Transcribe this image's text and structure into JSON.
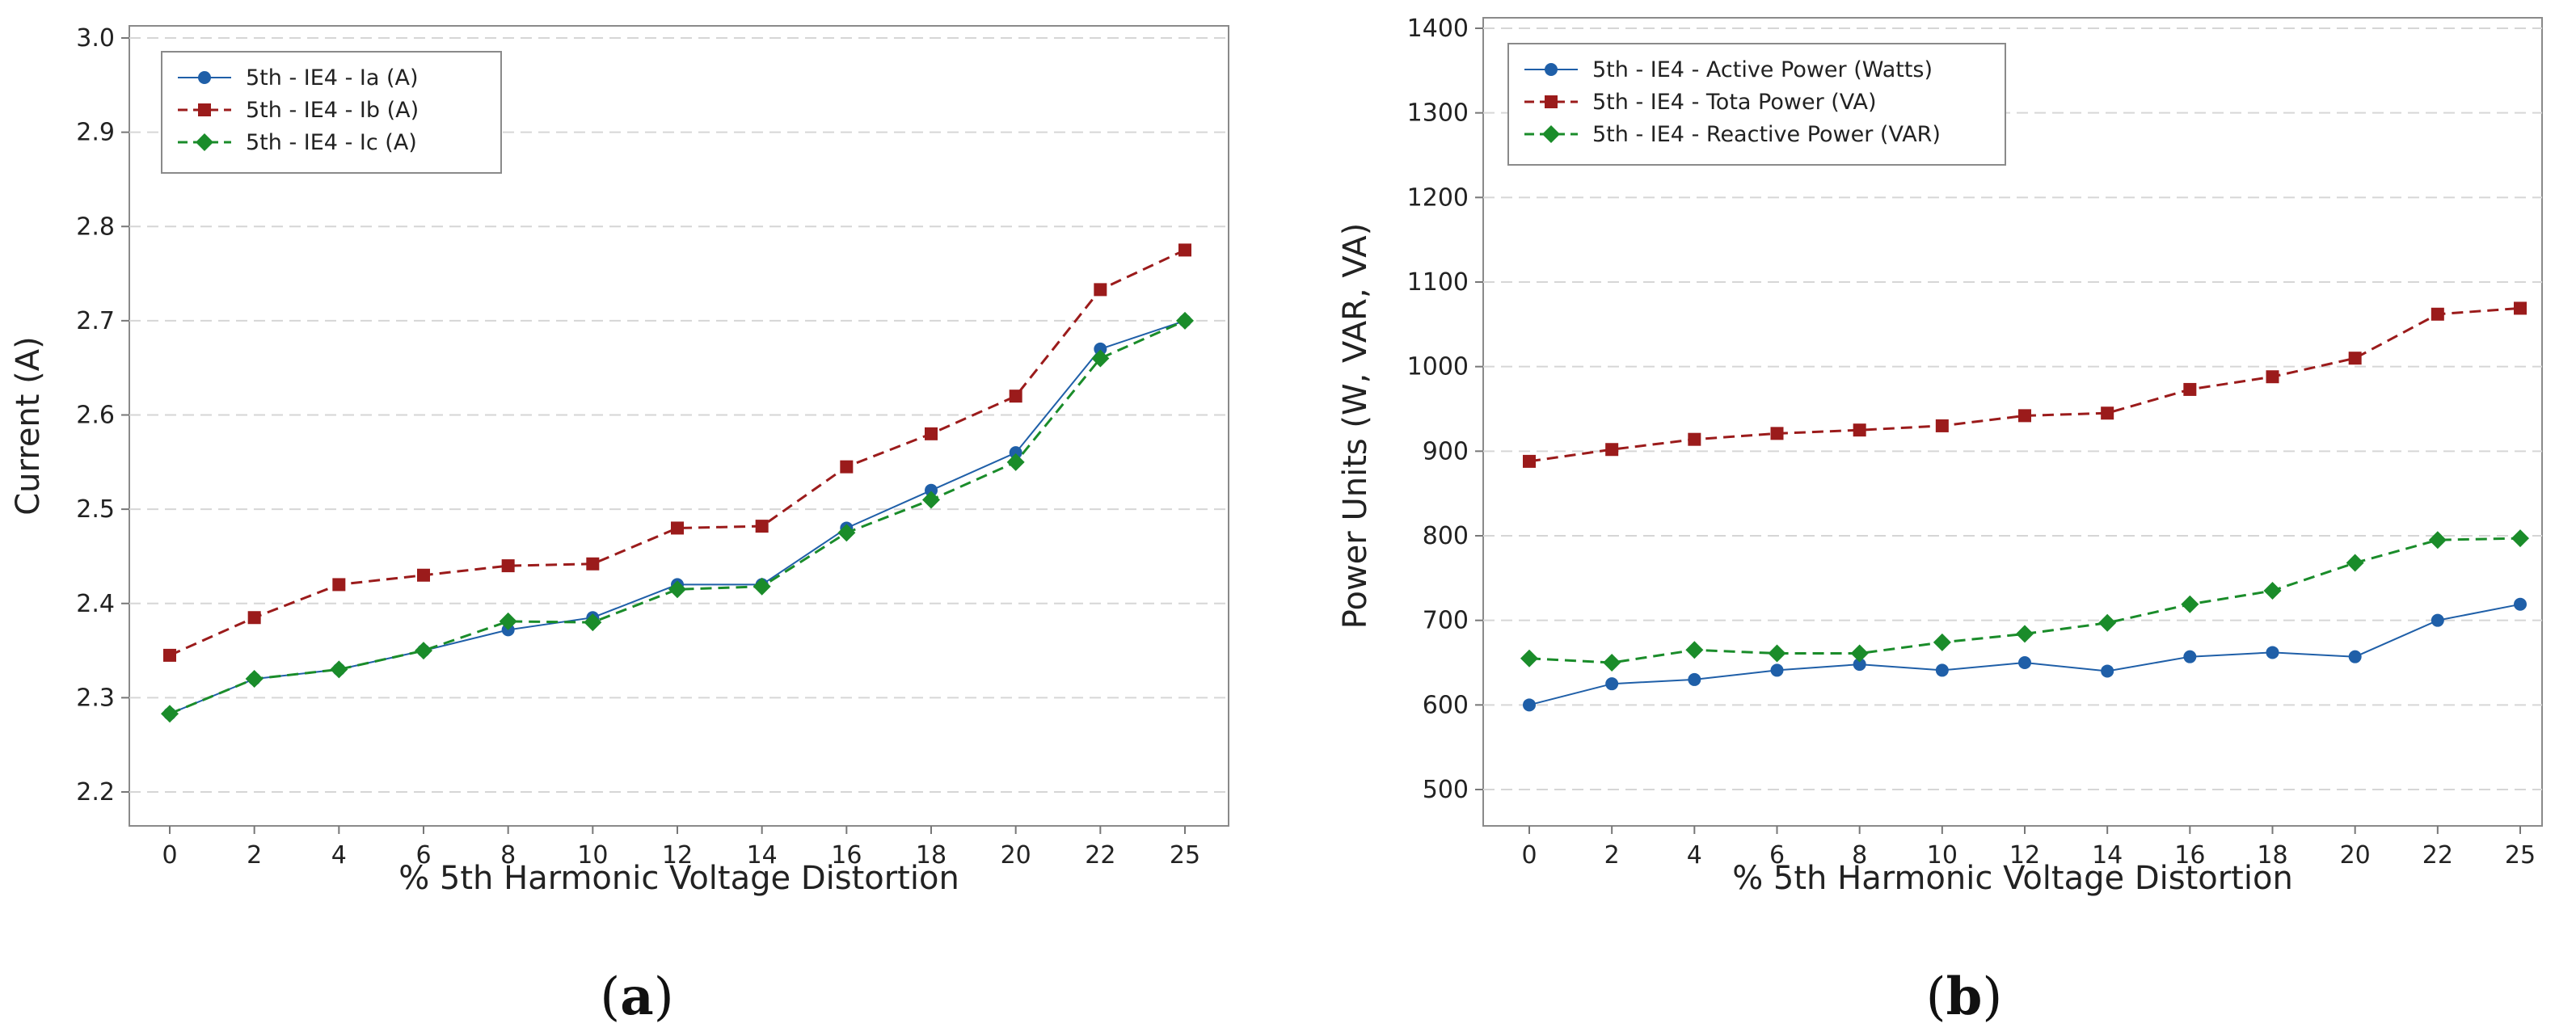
{
  "figure": {
    "panels": [
      "(a)",
      "(b)"
    ]
  },
  "chart_data": [
    {
      "type": "line",
      "panel_label": "(a)",
      "title": "",
      "xlabel": "% 5th Harmonic Voltage Distortion",
      "ylabel": "Current (A)",
      "categories": [
        "0",
        "2",
        "4",
        "6",
        "8",
        "10",
        "12",
        "14",
        "16",
        "18",
        "20",
        "22",
        "25"
      ],
      "ylim": [
        2.2,
        3.0
      ],
      "yticks": [
        "2.2",
        "2.3",
        "2.4",
        "2.5",
        "2.6",
        "2.7",
        "2.8",
        "2.9",
        "3.0"
      ],
      "grid": "horizontal dashed",
      "legend_position": "top-left",
      "series": [
        {
          "name": "5th - IE4 - Ia (A)",
          "marker": "circle",
          "line": "solid",
          "color": "#1f5fa8",
          "values": [
            2.283,
            2.32,
            2.33,
            2.35,
            2.372,
            2.385,
            2.42,
            2.42,
            2.48,
            2.52,
            2.56,
            2.67,
            2.7
          ]
        },
        {
          "name": "5th - IE4 - Ib (A)",
          "marker": "square",
          "line": "dashed",
          "color": "#9b1b1b",
          "values": [
            2.345,
            2.385,
            2.42,
            2.43,
            2.44,
            2.442,
            2.48,
            2.482,
            2.545,
            2.58,
            2.62,
            2.733,
            2.775
          ]
        },
        {
          "name": "5th - IE4 - Ic (A)",
          "marker": "diamond",
          "line": "dashed",
          "color": "#1a8c2a",
          "values": [
            2.283,
            2.32,
            2.33,
            2.35,
            2.381,
            2.38,
            2.415,
            2.418,
            2.475,
            2.51,
            2.55,
            2.66,
            2.7
          ]
        }
      ]
    },
    {
      "type": "line",
      "panel_label": "(b)",
      "title": "",
      "xlabel": "% 5th Harmonic Voltage Distortion",
      "ylabel": "Power Units (W, VAR, VA)",
      "categories": [
        "0",
        "2",
        "4",
        "6",
        "8",
        "10",
        "12",
        "14",
        "16",
        "18",
        "20",
        "22",
        "25"
      ],
      "ylim": [
        500,
        1400
      ],
      "yticks": [
        "500",
        "600",
        "700",
        "800",
        "900",
        "1000",
        "1100",
        "1200",
        "1300",
        "1400"
      ],
      "grid": "horizontal dashed",
      "legend_position": "top-left",
      "series": [
        {
          "name": "5th - IE4 - Active Power (Watts)",
          "marker": "circle",
          "line": "solid",
          "color": "#1f5fa8",
          "values": [
            600,
            625,
            630,
            641,
            648,
            641,
            650,
            640,
            657,
            662,
            657,
            700,
            719
          ]
        },
        {
          "name": "5th - IE4 - Tota Power (VA)",
          "marker": "square",
          "line": "dashed",
          "color": "#9b1b1b",
          "values": [
            888,
            902,
            914,
            921,
            925,
            930,
            942,
            945,
            973,
            988,
            1010,
            1062,
            1069
          ]
        },
        {
          "name": "5th - IE4 - Reactive Power (VAR)",
          "marker": "diamond",
          "line": "dashed",
          "color": "#1a8c2a",
          "values": [
            655,
            650,
            665,
            661,
            661,
            674,
            684,
            697,
            719,
            735,
            768,
            795,
            797
          ]
        }
      ]
    }
  ]
}
